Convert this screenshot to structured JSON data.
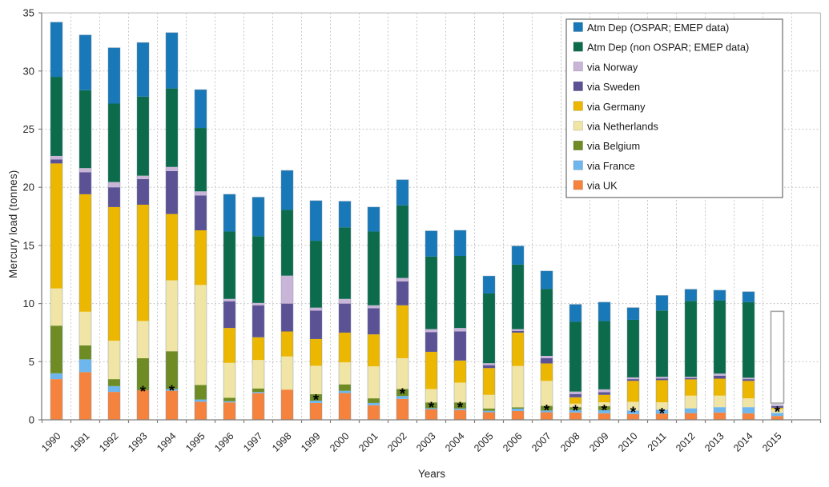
{
  "chart_data": {
    "type": "bar",
    "subtype": "stacked-vertical",
    "title": "",
    "xlabel": "Years",
    "ylabel": "Mercury load (tonnes)",
    "ylim": [
      0,
      35
    ],
    "ytick_step": 5,
    "grid": true,
    "legend_position": "top-right-inside",
    "categories": [
      "1990",
      "1991",
      "1992",
      "1993",
      "1994",
      "1995",
      "1996",
      "1997",
      "1998",
      "1999",
      "2000",
      "2001",
      "2002",
      "2003",
      "2004",
      "2005",
      "2006",
      "2007",
      "2008",
      "2009",
      "2010",
      "2011",
      "2012",
      "2013",
      "2014",
      "2015"
    ],
    "series": [
      {
        "name": "via UK",
        "color": "#F5833D",
        "values": [
          3.5,
          4.1,
          2.4,
          2.55,
          2.5,
          1.55,
          1.5,
          2.3,
          2.6,
          1.45,
          2.3,
          1.25,
          1.8,
          0.9,
          0.85,
          0.65,
          0.76,
          0.65,
          0.63,
          0.56,
          0.5,
          0.53,
          0.58,
          0.63,
          0.56,
          0.33
        ]
      },
      {
        "name": "via France",
        "color": "#6EB7EE",
        "values": [
          0.5,
          1.1,
          0.5,
          0,
          0.15,
          0.2,
          0.1,
          0.1,
          0,
          0.2,
          0.2,
          0.2,
          0.25,
          0.1,
          0.12,
          0.13,
          0.2,
          0.15,
          0.22,
          0.27,
          0.3,
          0.35,
          0.41,
          0.46,
          0.53,
          0.27
        ]
      },
      {
        "name": "via Belgium",
        "color": "#6E8C23",
        "values": [
          4.1,
          1.2,
          0.6,
          2.75,
          3.25,
          1.25,
          0.3,
          0.3,
          0,
          0.55,
          0.55,
          0.4,
          0.6,
          0.5,
          0.53,
          0.2,
          0.12,
          0.4,
          0.24,
          0.35,
          0,
          0,
          0,
          0,
          0,
          0
        ]
      },
      {
        "name": "via Netherlands",
        "color": "#F0E5A5",
        "values": [
          3.2,
          2.9,
          3.3,
          3.2,
          6.1,
          8.6,
          3.0,
          2.45,
          2.85,
          2.45,
          1.9,
          2.75,
          2.65,
          1.15,
          1.7,
          1.17,
          3.55,
          2.15,
          0.3,
          0.33,
          0.75,
          0.63,
          1.09,
          0.99,
          0.76,
          0.32
        ]
      },
      {
        "name": "via Germany",
        "color": "#EBB700",
        "values": [
          10.75,
          10.1,
          11.5,
          10.0,
          5.7,
          4.7,
          3.0,
          1.95,
          2.15,
          2.3,
          2.55,
          2.75,
          4.55,
          3.2,
          1.9,
          2.3,
          2.87,
          1.5,
          0.55,
          0.64,
          1.8,
          1.9,
          1.4,
          1.46,
          1.5,
          0.12
        ]
      },
      {
        "name": "via Sweden",
        "color": "#5B5295",
        "values": [
          0.35,
          1.9,
          1.7,
          2.2,
          3.7,
          3.0,
          2.3,
          2.75,
          2.4,
          2.45,
          2.5,
          2.25,
          2.05,
          1.7,
          2.5,
          0.25,
          0.15,
          0.45,
          0.28,
          0.23,
          0.15,
          0.15,
          0.12,
          0.26,
          0.15,
          0.14
        ]
      },
      {
        "name": "via Norway",
        "color": "#C9B5D8",
        "values": [
          0.3,
          0.35,
          0.45,
          0.3,
          0.35,
          0.35,
          0.2,
          0.2,
          2.4,
          0.25,
          0.4,
          0.25,
          0.3,
          0.25,
          0.3,
          0.17,
          0.15,
          0.2,
          0.21,
          0.24,
          0.15,
          0.14,
          0.1,
          0.18,
          0.12,
          0.14
        ]
      },
      {
        "name": "Atm Dep (non OSPAR; EMEP data)",
        "color": "#0C6B4B",
        "values": [
          6.8,
          6.7,
          6.75,
          6.8,
          6.75,
          5.45,
          5.8,
          5.75,
          5.65,
          5.75,
          6.15,
          6.35,
          6.25,
          6.25,
          6.2,
          6.0,
          5.55,
          5.75,
          6.0,
          5.87,
          4.95,
          5.7,
          6.53,
          6.27,
          6.5,
          0
        ]
      },
      {
        "name": "Atm Dep (OSPAR; EMEP data)",
        "color": "#1878B8",
        "values": [
          4.7,
          4.75,
          4.8,
          4.65,
          4.8,
          3.3,
          3.2,
          3.35,
          3.4,
          3.45,
          2.25,
          2.1,
          2.2,
          2.2,
          2.2,
          1.5,
          1.6,
          1.55,
          1.5,
          1.63,
          1.05,
          1.3,
          1.0,
          0.9,
          0.9,
          0
        ]
      }
    ],
    "totals": [
      34.2,
      33.1,
      32.0,
      32.45,
      33.3,
      28.4,
      19.4,
      19.15,
      21.45,
      18.85,
      18.8,
      18.3,
      20.65,
      16.25,
      16.3,
      12.37,
      14.95,
      12.8,
      9.93,
      10.12,
      9.65,
      10.7,
      11.23,
      11.15,
      11.02,
      1.32
    ],
    "asterisk_marker": "*",
    "asterisks": [
      {
        "category": "1993",
        "y": 2.62
      },
      {
        "category": "1994",
        "y": 2.67
      },
      {
        "category": "1999",
        "y": 1.9
      },
      {
        "category": "2002",
        "y": 2.4
      },
      {
        "category": "2003",
        "y": 1.25
      },
      {
        "category": "2004",
        "y": 1.25
      },
      {
        "category": "2007",
        "y": 1.0
      },
      {
        "category": "2008",
        "y": 0.97
      },
      {
        "category": "2009",
        "y": 1.0
      },
      {
        "category": "2010",
        "y": 0.83
      },
      {
        "category": "2011",
        "y": 0.72
      },
      {
        "category": "2015",
        "y": 0.85
      }
    ],
    "empty_box": {
      "category": "2015",
      "from": 1.44,
      "to": 9.33
    },
    "yticks": [
      0,
      5,
      10,
      15,
      20,
      25,
      30,
      35
    ]
  },
  "style_colors": {
    "axis": "#808080",
    "frame": "#C0C0C0",
    "gridline": "#C8C8C8",
    "text": "#262626",
    "legend_border": "#808080",
    "bar_outline": "rgba(130,150,170,0.55)",
    "empty_box_outline": "#A6A6A6"
  }
}
